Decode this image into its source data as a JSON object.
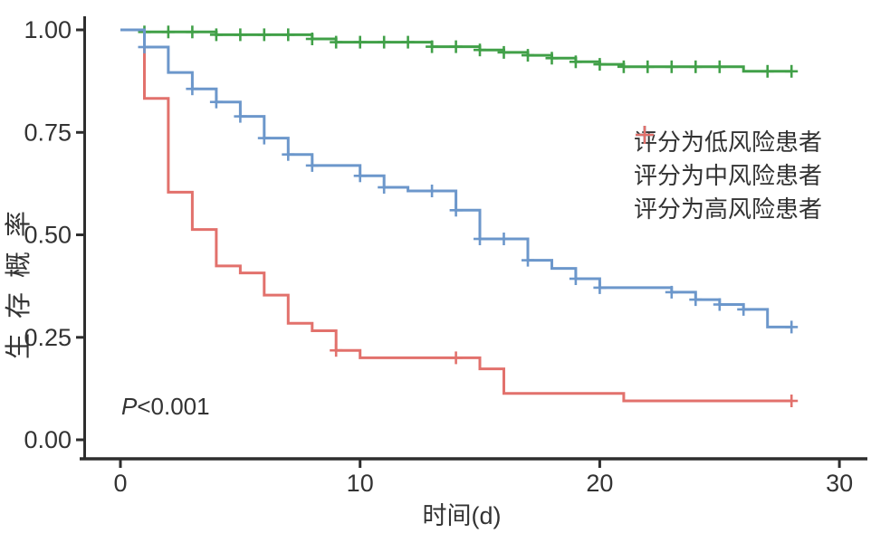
{
  "figure": {
    "background": "#ffffff",
    "text_color": "#333333",
    "axis_color": "#2e2e2e"
  },
  "chart_data": {
    "type": "line",
    "variant": "kaplan-meier-step",
    "title": "",
    "xlabel": "时间(d)",
    "ylabel": "生存概率",
    "xlim": [
      0,
      30
    ],
    "ylim": [
      0,
      1
    ],
    "grid": false,
    "legend_position": "right-center",
    "annotation": {
      "text": "P<0.001",
      "x_day": 0,
      "y_value": 0.1
    },
    "xticks": [
      0,
      10,
      20,
      30
    ],
    "yticks": [
      {
        "value": 1.0,
        "label": "1.00"
      },
      {
        "value": 0.75,
        "label": "0.75"
      },
      {
        "value": 0.5,
        "label": "0.50"
      },
      {
        "value": 0.25,
        "label": "0.25"
      },
      {
        "value": 0.0,
        "label": "0.00"
      }
    ],
    "series": [
      {
        "name": "评分为低风险患者",
        "risk_level": "low",
        "color": "#41a048",
        "end_day": 28,
        "steps": [
          [
            0,
            1.0
          ],
          [
            1,
            0.995
          ],
          [
            4,
            0.988
          ],
          [
            8,
            0.978
          ],
          [
            9,
            0.97
          ],
          [
            13,
            0.959
          ],
          [
            15,
            0.951
          ],
          [
            16,
            0.945
          ],
          [
            17,
            0.938
          ],
          [
            18,
            0.931
          ],
          [
            19,
            0.922
          ],
          [
            20,
            0.916
          ],
          [
            21,
            0.91
          ],
          [
            26,
            0.899
          ]
        ],
        "censor_days": [
          1,
          2,
          3,
          4,
          5,
          6,
          7,
          8,
          9,
          10,
          11,
          12,
          13,
          14,
          15,
          16,
          17,
          18,
          19,
          20,
          21,
          22,
          23,
          24,
          25,
          27,
          28
        ]
      },
      {
        "name": "评分为中风险患者",
        "risk_level": "medium",
        "color": "#6c97cb",
        "end_day": 28,
        "steps": [
          [
            0,
            1.0
          ],
          [
            1,
            0.958
          ],
          [
            2,
            0.896
          ],
          [
            3,
            0.856
          ],
          [
            4,
            0.824
          ],
          [
            5,
            0.789
          ],
          [
            6,
            0.736
          ],
          [
            7,
            0.696
          ],
          [
            8,
            0.669
          ],
          [
            10,
            0.644
          ],
          [
            11,
            0.616
          ],
          [
            12,
            0.607
          ],
          [
            14,
            0.56
          ],
          [
            15,
            0.49
          ],
          [
            17,
            0.438
          ],
          [
            18,
            0.418
          ],
          [
            19,
            0.393
          ],
          [
            20,
            0.371
          ],
          [
            23,
            0.36
          ],
          [
            24,
            0.342
          ],
          [
            25,
            0.33
          ],
          [
            26,
            0.318
          ],
          [
            27,
            0.275
          ]
        ],
        "censor_days": [
          1,
          3,
          4,
          5,
          6,
          7,
          8,
          10,
          11,
          13,
          14,
          15,
          16,
          17,
          19,
          20,
          23,
          24,
          25,
          26,
          28
        ]
      },
      {
        "name": "评分为高风险患者",
        "risk_level": "high",
        "color": "#e2716c",
        "end_day": 28,
        "steps": [
          [
            0,
            1.0
          ],
          [
            1,
            0.833
          ],
          [
            2,
            0.604
          ],
          [
            3,
            0.513
          ],
          [
            4,
            0.424
          ],
          [
            5,
            0.407
          ],
          [
            6,
            0.353
          ],
          [
            7,
            0.284
          ],
          [
            8,
            0.266
          ],
          [
            9,
            0.218
          ],
          [
            10,
            0.2
          ],
          [
            15,
            0.173
          ],
          [
            16,
            0.113
          ],
          [
            21,
            0.095
          ]
        ],
        "censor_days": [
          9,
          14,
          28
        ]
      }
    ]
  }
}
